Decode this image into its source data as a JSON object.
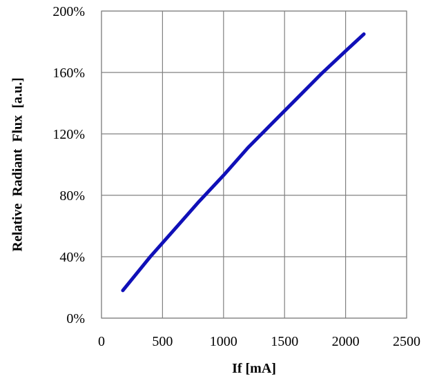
{
  "chart_data": {
    "type": "line",
    "title": "",
    "xlabel": "If [mA]",
    "ylabel": "Relative  Radiant  Flux  [a.u.]",
    "xlim": [
      0,
      2500
    ],
    "ylim": [
      0,
      200
    ],
    "x_ticks": [
      0,
      500,
      1000,
      1500,
      2000,
      2500
    ],
    "x_tick_labels": [
      "0",
      "500",
      "1000",
      "1500",
      "2000",
      "2500"
    ],
    "y_ticks": [
      0,
      40,
      80,
      120,
      160,
      200
    ],
    "y_tick_labels": [
      "0%",
      "40%",
      "80%",
      "120%",
      "160%",
      "200%"
    ],
    "grid": true,
    "legend": "none",
    "series": [
      {
        "color": "#1010b8",
        "x": [
          175,
          400,
          600,
          800,
          1000,
          1200,
          1400,
          1600,
          1800,
          2000,
          2150
        ],
        "y": [
          18,
          40,
          58,
          76,
          93,
          111,
          127,
          143,
          159,
          174,
          185
        ]
      }
    ]
  }
}
